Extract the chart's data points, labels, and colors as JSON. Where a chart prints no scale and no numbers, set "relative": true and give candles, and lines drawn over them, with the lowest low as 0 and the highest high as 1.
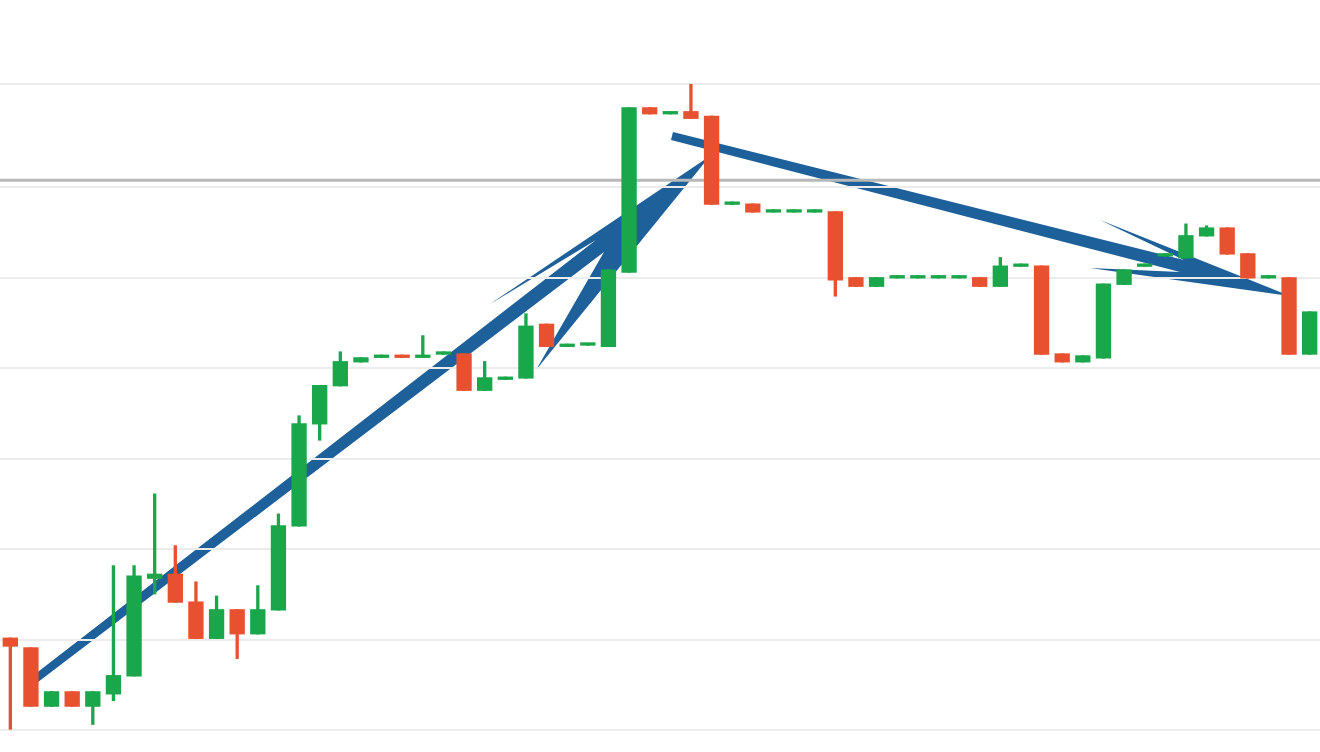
{
  "chart_data": {
    "type": "candlestick",
    "relative": true,
    "grid": "y",
    "legend": false,
    "tick_labels": false,
    "categories": [
      null,
      null,
      null,
      null,
      null,
      null,
      null,
      null,
      null,
      null,
      null,
      null,
      null,
      null,
      null,
      null,
      null,
      null,
      null,
      null,
      null,
      null,
      null,
      null,
      null,
      null,
      null,
      null,
      null,
      null,
      null,
      null,
      null,
      null,
      null,
      null,
      null,
      null,
      null,
      null,
      null,
      null,
      null,
      null,
      null,
      null,
      null,
      null,
      null,
      null,
      null,
      null,
      null,
      null,
      null,
      null,
      null,
      null,
      null,
      null,
      null,
      null,
      null,
      null
    ],
    "ohlc": [
      [
        0.142,
        0.142,
        0,
        0.13
      ],
      [
        0.127,
        0.127,
        0.037,
        0.037
      ],
      [
        0.037,
        0.059,
        0.037,
        0.059
      ],
      [
        0.059,
        0.059,
        0.037,
        0.037
      ],
      [
        0.037,
        0.059,
        0.009,
        0.059
      ],
      [
        0.056,
        0.254,
        0.046,
        0.084
      ],
      [
        0.084,
        0.254,
        0.084,
        0.238
      ],
      [
        0.235,
        0.365,
        0.211,
        0.241
      ],
      [
        0.241,
        0.285,
        0.198,
        0.198
      ],
      [
        0.198,
        0.229,
        0.142,
        0.142
      ],
      [
        0.142,
        0.207,
        0.142,
        0.186
      ],
      [
        0.186,
        0.186,
        0.111,
        0.149
      ],
      [
        0.149,
        0.223,
        0.149,
        0.186
      ],
      [
        0.186,
        0.334,
        0.186,
        0.316
      ],
      [
        0.316,
        0.486,
        0.316,
        0.474
      ],
      [
        0.474,
        0.533,
        0.449,
        0.533
      ],
      [
        0.533,
        0.585,
        0.533,
        0.57
      ],
      [
        0.57,
        0.576,
        0.57,
        0.576
      ],
      [
        0.577,
        0.58,
        0.577,
        0.58
      ],
      [
        0.58,
        0.58,
        0.577,
        0.577
      ],
      [
        0.577,
        0.61,
        0.577,
        0.58
      ],
      [
        0.582,
        0.585,
        0.582,
        0.585
      ],
      [
        0.582,
        0.582,
        0.526,
        0.526
      ],
      [
        0.526,
        0.57,
        0.526,
        0.545
      ],
      [
        0.543,
        0.546,
        0.543,
        0.546
      ],
      [
        0.545,
        0.644,
        0.545,
        0.625
      ],
      [
        0.628,
        0.628,
        0.594,
        0.594
      ],
      [
        0.594,
        0.597,
        0.594,
        0.597
      ],
      [
        0.596,
        0.597,
        0.596,
        0.597
      ],
      [
        0.594,
        0.712,
        0.594,
        0.712
      ],
      [
        0.709,
        0.963,
        0.709,
        0.963
      ],
      [
        0.963,
        0.963,
        0.954,
        0.954
      ],
      [
        0.954,
        0.957,
        0.954,
        0.957
      ],
      [
        0.957,
        1,
        0.947,
        0.947
      ],
      [
        0.95,
        0.95,
        0.814,
        0.814
      ],
      [
        0.814,
        0.817,
        0.814,
        0.817
      ],
      [
        0.814,
        0.814,
        0.802,
        0.802
      ],
      [
        0.802,
        0.805,
        0.802,
        0.805
      ],
      [
        0.802,
        0.805,
        0.802,
        0.805
      ],
      [
        0.802,
        0.805,
        0.802,
        0.805
      ],
      [
        0.802,
        0.802,
        0.672,
        0.697
      ],
      [
        0.7,
        0.7,
        0.687,
        0.687
      ],
      [
        0.687,
        0.7,
        0.687,
        0.7
      ],
      [
        0.7,
        0.703,
        0.7,
        0.703
      ],
      [
        0.7,
        0.703,
        0.7,
        0.703
      ],
      [
        0.7,
        0.703,
        0.7,
        0.703
      ],
      [
        0.7,
        0.703,
        0.7,
        0.703
      ],
      [
        0.7,
        0.7,
        0.687,
        0.687
      ],
      [
        0.687,
        0.731,
        0.687,
        0.718
      ],
      [
        0.718,
        0.721,
        0.718,
        0.721
      ],
      [
        0.718,
        0.718,
        0.582,
        0.582
      ],
      [
        0.582,
        0.582,
        0.57,
        0.57
      ],
      [
        0.57,
        0.579,
        0.57,
        0.579
      ],
      [
        0.576,
        0.69,
        0.576,
        0.69
      ],
      [
        0.69,
        0.712,
        0.69,
        0.712
      ],
      [
        0.718,
        0.721,
        0.718,
        0.721
      ],
      [
        0.734,
        0.737,
        0.734,
        0.737
      ],
      [
        0.731,
        0.783,
        0.731,
        0.765
      ],
      [
        0.765,
        0.78,
        0.765,
        0.777
      ],
      [
        0.777,
        0.777,
        0.737,
        0.737
      ],
      [
        0.737,
        0.737,
        0.7,
        0.7
      ],
      [
        0.7,
        0.703,
        0.7,
        0.703
      ],
      [
        0.7,
        0.7,
        0.582,
        0.582
      ],
      [
        0.582,
        0.647,
        0.582,
        0.647
      ]
    ],
    "colors": [
      "#e8512f",
      "#e8512f",
      "#1aa64a",
      "#e8512f",
      "#1aa64a",
      "#1aa64a",
      "#1aa64a",
      "#1aa64a",
      "#e8512f",
      "#e8512f",
      "#1aa64a",
      "#e8512f",
      "#1aa64a",
      "#1aa64a",
      "#1aa64a",
      "#1aa64a",
      "#1aa64a",
      "#1aa64a",
      "#1aa64a",
      "#e8512f",
      "#1aa64a",
      "#1aa64a",
      "#e8512f",
      "#1aa64a",
      "#1aa64a",
      "#1aa64a",
      "#e8512f",
      "#1aa64a",
      "#1aa64a",
      "#1aa64a",
      "#1aa64a",
      "#e8512f",
      "#1aa64a",
      "#e8512f",
      "#e8512f",
      "#1aa64a",
      "#e8512f",
      "#1aa64a",
      "#1aa64a",
      "#1aa64a",
      "#e8512f",
      "#e8512f",
      "#1aa64a",
      "#1aa64a",
      "#1aa64a",
      "#1aa64a",
      "#1aa64a",
      "#e8512f",
      "#1aa64a",
      "#1aa64a",
      "#e8512f",
      "#e8512f",
      "#1aa64a",
      "#1aa64a",
      "#1aa64a",
      "#1aa64a",
      "#1aa64a",
      "#1aa64a",
      "#1aa64a",
      "#e8512f",
      "#e8512f",
      "#1aa64a",
      "#e8512f",
      "#1aa64a"
    ],
    "ref_lines": [
      {
        "axis": "y",
        "value": 0.851,
        "color": "#b8b8b8"
      }
    ]
  }
}
